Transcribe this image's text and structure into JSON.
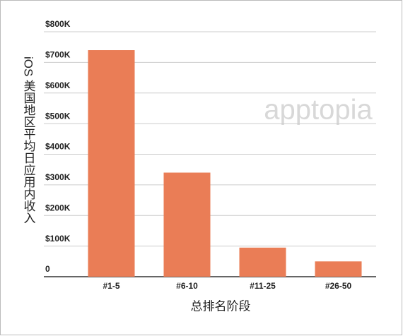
{
  "chart_data": {
    "type": "bar",
    "y_axis_label": "iOS 美国地区平均日应用内收入",
    "x_axis_label": "总排名阶段",
    "watermark": "apptopia",
    "categories": [
      "#1-5",
      "#6-10",
      "#11-25",
      "#26-50"
    ],
    "values": [
      740000,
      340000,
      95000,
      50000
    ],
    "color": "#ea7d56",
    "ylim": [
      0,
      800000
    ],
    "yticks": [
      0,
      {
        "value": 100000,
        "label": "$100K"
      },
      {
        "value": 200000,
        "label": "$200K"
      },
      {
        "value": 300000,
        "label": "$300K"
      },
      {
        "value": 400000,
        "label": "$400K"
      },
      {
        "value": 500000,
        "label": "$500K"
      },
      {
        "value": 600000,
        "label": "$600K"
      },
      {
        "value": 700000,
        "label": "$700K"
      },
      {
        "value": 800000,
        "label": "$800K"
      }
    ],
    "grid": true
  }
}
